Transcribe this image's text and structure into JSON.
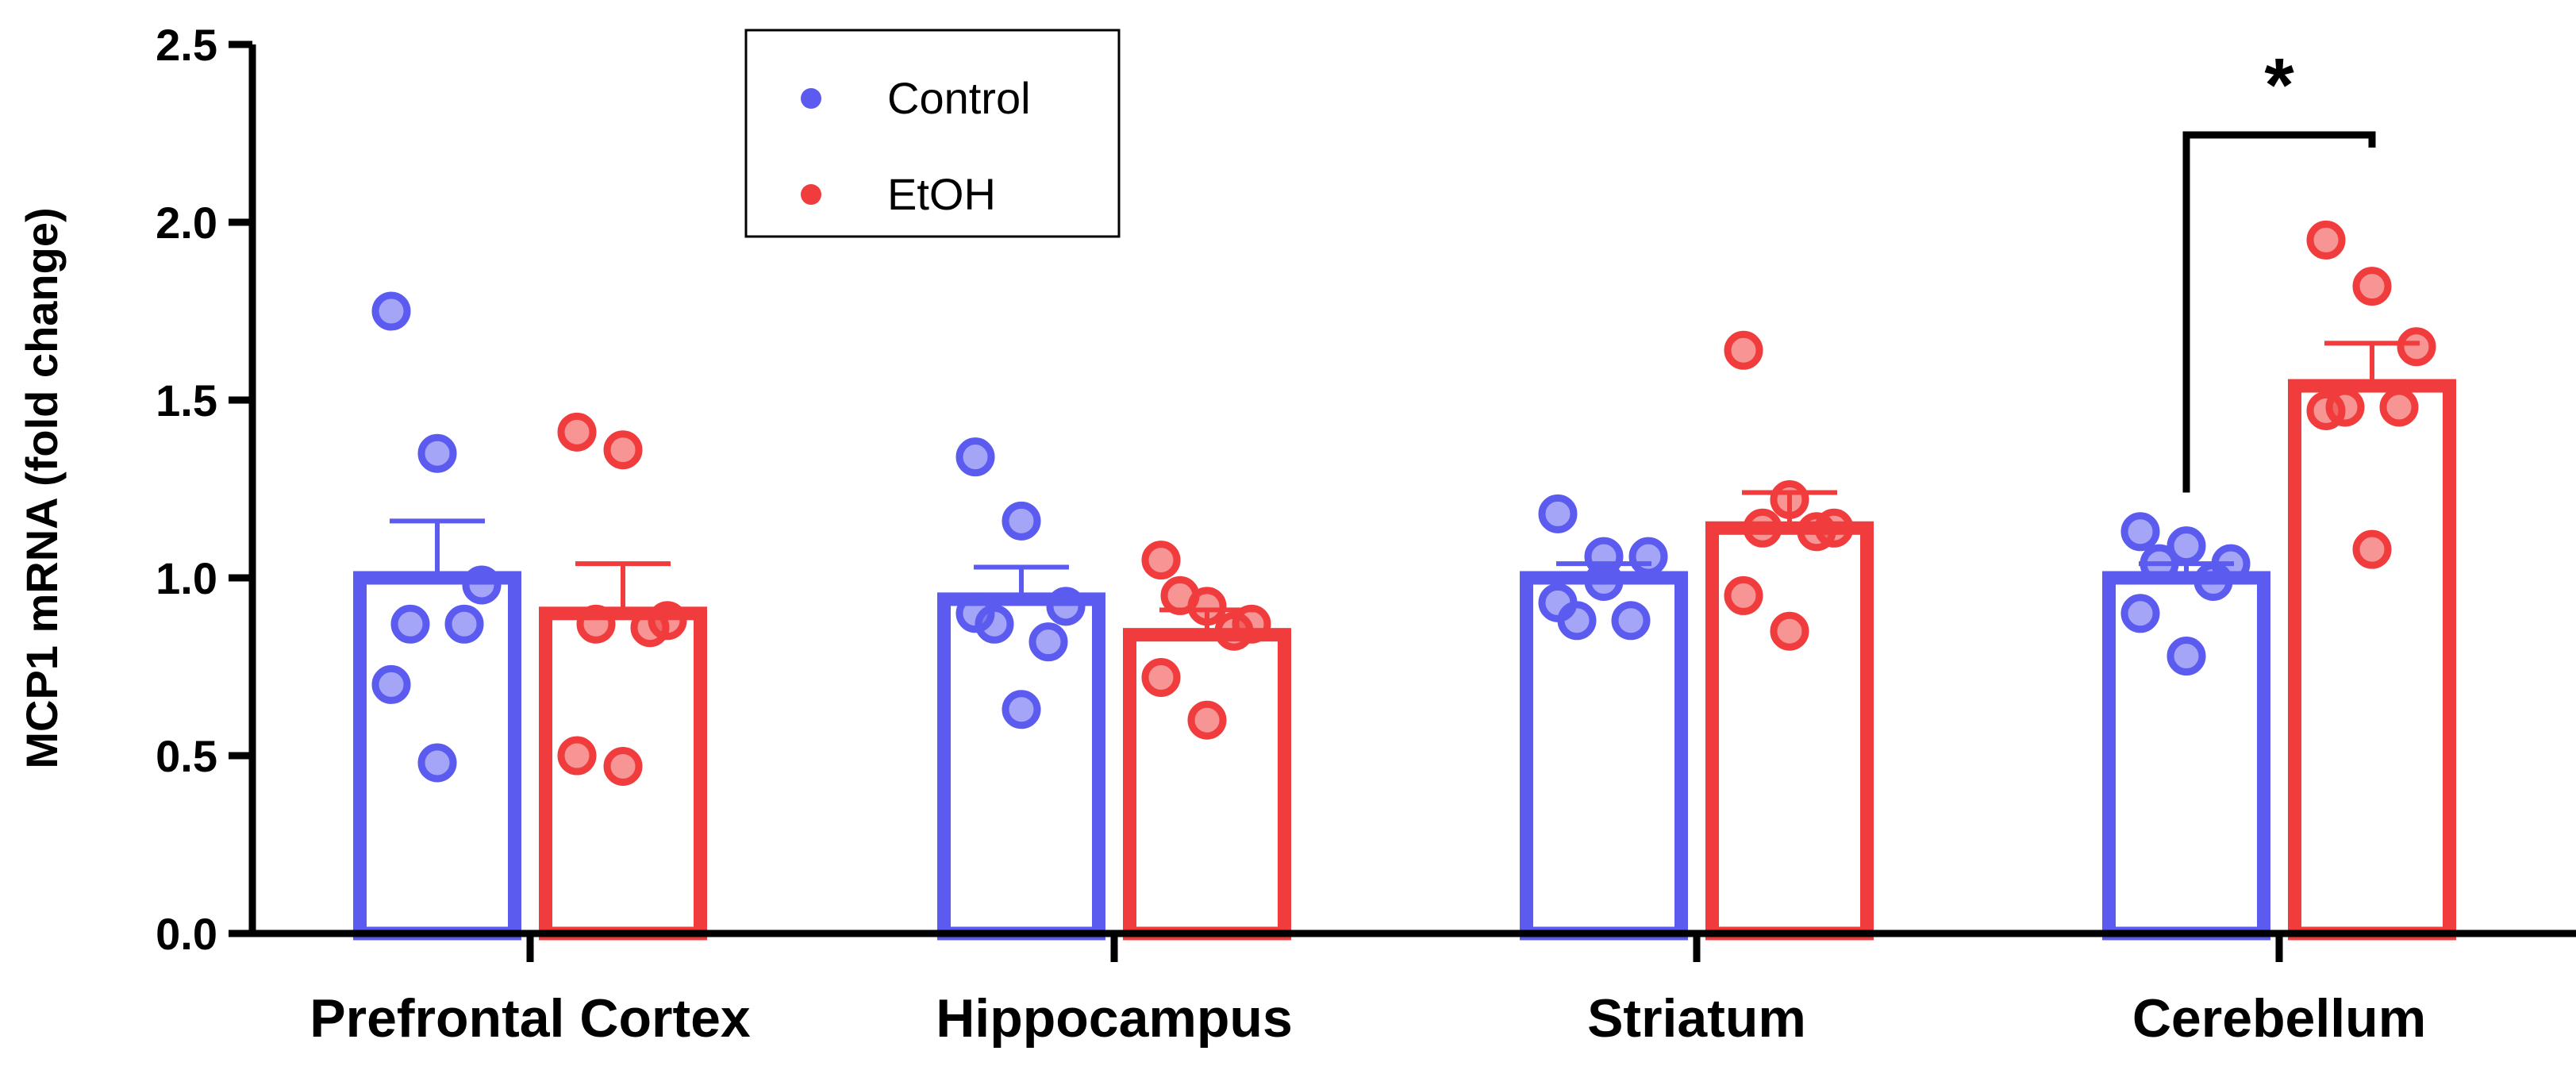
{
  "chart_data": {
    "type": "bar",
    "title": "",
    "xlabel": "",
    "ylabel": "MCP1 mRNA (fold change)",
    "ylim": [
      0,
      2.5
    ],
    "yticks": [
      "0.0",
      "0.5",
      "1.0",
      "1.5",
      "2.0",
      "2.5"
    ],
    "ytick_values": [
      0,
      0.5,
      1.0,
      1.5,
      2.0,
      2.5
    ],
    "categories": [
      "Prefrontal Cortex",
      "Hippocampus",
      "Striatum",
      "Cerebellum"
    ],
    "grid": false,
    "legend": {
      "position": "top-left",
      "entries": [
        "Control",
        "EtOH"
      ]
    },
    "series": [
      {
        "name": "Control",
        "color": "#5b5bf0",
        "values": [
          1.0,
          0.94,
          1.0,
          1.0
        ],
        "sem": [
          0.16,
          0.09,
          0.04,
          0.04
        ],
        "points": [
          [
            1.75,
            1.35,
            0.98,
            0.87,
            0.87,
            0.7,
            0.48
          ],
          [
            1.34,
            1.16,
            0.92,
            0.87,
            0.82,
            0.9,
            0.63
          ],
          [
            1.18,
            1.06,
            1.06,
            0.88,
            0.88,
            0.93,
            0.99
          ],
          [
            1.13,
            1.09,
            1.04,
            1.04,
            0.99,
            0.9,
            0.78
          ]
        ]
      },
      {
        "name": "EtOH",
        "color": "#f03c3c",
        "values": [
          0.9,
          0.84,
          1.14,
          1.54
        ],
        "sem": [
          0.14,
          0.07,
          0.1,
          0.12
        ],
        "points": [
          [
            1.41,
            1.36,
            0.88,
            0.87,
            0.86,
            0.5,
            0.47
          ],
          [
            1.05,
            0.92,
            0.87,
            0.95,
            0.85,
            0.72,
            0.6
          ],
          [
            1.64,
            1.22,
            1.14,
            1.14,
            1.13,
            0.95,
            0.85
          ],
          [
            1.95,
            1.82,
            1.65,
            1.48,
            1.48,
            1.47,
            1.08
          ]
        ]
      }
    ],
    "annotations": [
      {
        "type": "significance",
        "category": "Cerebellum",
        "label": "*"
      }
    ]
  }
}
